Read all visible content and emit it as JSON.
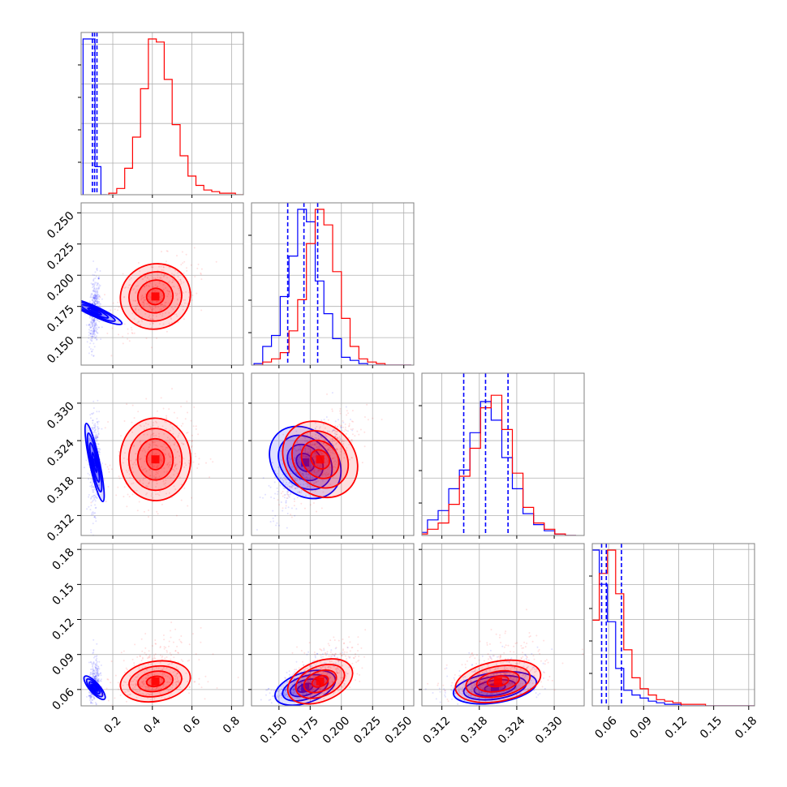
{
  "chart_data": {
    "type": "corner",
    "colors": {
      "blue": "#0000ff",
      "red": "#ff0000",
      "grid": "#b0b0b0",
      "frame": "#808080"
    },
    "series": [
      {
        "name": "",
        "color": "#0000ff",
        "mean": [
          0.108,
          0.171,
          0.3205,
          0.0615
        ],
        "std": [
          0.012,
          0.012,
          0.0032,
          0.0072
        ],
        "quantiles": [
          [
            0.097,
            0.108,
            0.12
          ],
          [
            0.157,
            0.17,
            0.181
          ],
          [
            0.3155,
            0.319,
            0.3226
          ],
          [
            0.054,
            0.058,
            0.071
          ]
        ]
      },
      {
        "name": "",
        "color": "#ff0000",
        "mean": [
          0.415,
          0.183,
          0.321,
          0.067
        ],
        "std": [
          0.085,
          0.013,
          0.0033,
          0.0095
        ],
        "quantiles": null
      }
    ],
    "histograms": [
      {
        "blue": [
          100,
          100,
          18,
          0
        ],
        "blue_x": [
          0.05,
          0.08,
          0.11,
          0.14,
          0.17
        ],
        "red_x": [
          0.18,
          0.22,
          0.26,
          0.3,
          0.34,
          0.38,
          0.42,
          0.46,
          0.5,
          0.54,
          0.58,
          0.62,
          0.66,
          0.7,
          0.74,
          0.78,
          0.82,
          0.86
        ],
        "red": [
          1,
          4,
          17,
          37,
          68,
          100,
          98,
          74,
          45,
          25,
          12,
          6,
          3,
          2,
          1,
          1,
          0
        ]
      },
      {
        "x": [
          0.13,
          0.137,
          0.144,
          0.151,
          0.158,
          0.165,
          0.172,
          0.179,
          0.186,
          0.193,
          0.2,
          0.207,
          0.214,
          0.221,
          0.228,
          0.235,
          0.242,
          0.249,
          0.256
        ],
        "blue": [
          1,
          12,
          19,
          44,
          70,
          100,
          92,
          54,
          33,
          17,
          5,
          3,
          1,
          0,
          0,
          0,
          0,
          0
        ],
        "red": [
          0,
          2,
          4,
          8,
          22,
          42,
          78,
          100,
          90,
          60,
          30,
          12,
          4,
          2,
          1,
          0,
          0,
          0
        ]
      },
      {
        "x": [
          0.308,
          0.3097,
          0.3114,
          0.3131,
          0.3148,
          0.3165,
          0.3182,
          0.3199,
          0.3216,
          0.3233,
          0.325,
          0.3267,
          0.3284,
          0.3301,
          0.3318,
          0.3335
        ],
        "blue": [
          2,
          10,
          16,
          30,
          42,
          66,
          86,
          74,
          50,
          30,
          14,
          7,
          3,
          1,
          0
        ],
        "red": [
          1,
          4,
          8,
          20,
          38,
          56,
          82,
          90,
          68,
          40,
          18,
          8,
          4,
          1,
          0
        ]
      },
      {
        "x": [
          0.045,
          0.052,
          0.059,
          0.066,
          0.073,
          0.08,
          0.087,
          0.094,
          0.101,
          0.108,
          0.115,
          0.122,
          0.129,
          0.136,
          0.143,
          0.15,
          0.157,
          0.164,
          0.171,
          0.178,
          0.185
        ],
        "blue": [
          100,
          78,
          54,
          24,
          10,
          7,
          5,
          3,
          2,
          1,
          1,
          0,
          0,
          0,
          0,
          0,
          0,
          0,
          0,
          0
        ],
        "red": [
          55,
          85,
          100,
          72,
          36,
          18,
          11,
          7,
          4,
          3,
          2,
          1,
          1,
          1,
          0,
          0,
          0,
          0,
          0,
          0
        ]
      }
    ],
    "axes": [
      {
        "range": [
          0.04,
          0.86
        ],
        "ticks": [
          0.2,
          0.4,
          0.6,
          0.8
        ],
        "tick_labels": [
          "0.2",
          "0.4",
          "0.6",
          "0.8"
        ]
      },
      {
        "range": [
          0.128,
          0.258
        ],
        "ticks": [
          0.15,
          0.175,
          0.2,
          0.225,
          0.25
        ],
        "tick_labels": [
          "0.150",
          "0.175",
          "0.200",
          "0.225",
          "0.250"
        ]
      },
      {
        "range": [
          0.3088,
          0.3348
        ],
        "ticks": [
          0.312,
          0.318,
          0.324,
          0.33
        ],
        "tick_labels": [
          "0.312",
          "0.318",
          "0.324",
          "0.330"
        ]
      },
      {
        "range": [
          0.046,
          0.185
        ],
        "ticks": [
          0.06,
          0.09,
          0.12,
          0.15,
          0.18
        ],
        "tick_labels": [
          "0.06",
          "0.09",
          "0.12",
          "0.15",
          "0.18"
        ]
      }
    ],
    "grid": true
  }
}
